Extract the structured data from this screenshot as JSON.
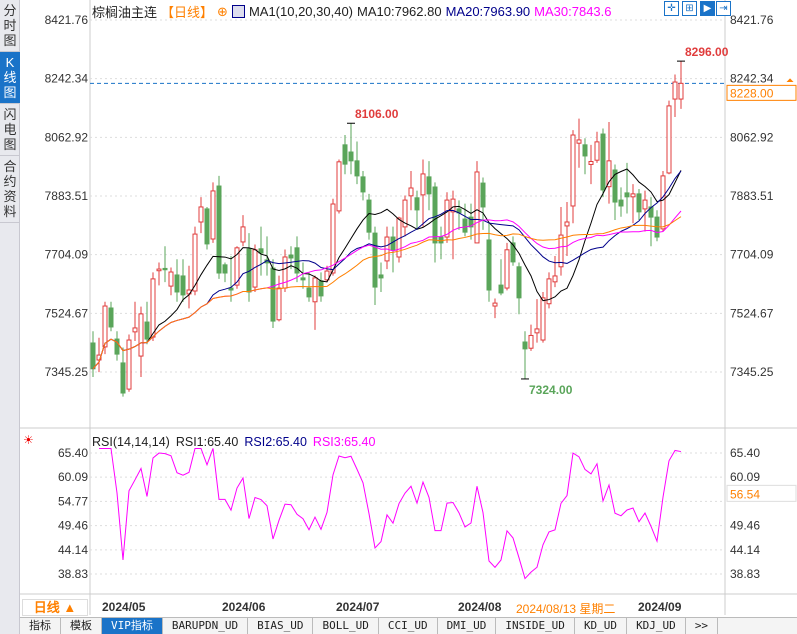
{
  "side_tabs": [
    {
      "label": "分时图"
    },
    {
      "label": "K线图",
      "active": true
    },
    {
      "label": "闪电图"
    },
    {
      "label": "合约资料"
    }
  ],
  "header": {
    "symbol": "棕榈油主连",
    "period": "【日线】",
    "ma_label": "MA1(10,20,30,40)",
    "ma10": "MA10:7962.80",
    "ma20": "MA20:7963.90",
    "ma30": "MA30:7843.6"
  },
  "toolbar": [
    "crosshair-icon",
    "range-icon",
    "play-icon",
    "exit-icon"
  ],
  "colors": {
    "up": "#e03c3c",
    "down": "#5aa55a",
    "ma10": "#000000",
    "ma20": "#00008b",
    "ma30": "#ff00ff",
    "ma40": "#ff8000",
    "accent": "#1a73c8",
    "highlight": "#ff8000"
  },
  "rsi_header": {
    "label": "RSI(14,14,14)",
    "rsi1": "RSI1:65.40",
    "rsi2": "RSI2:65.40",
    "rsi3": "RSI3:65.40"
  },
  "period_button": "日线 ▲",
  "crosshair_date": "2024/08/13 星期二",
  "tabs": [
    "指标",
    "模板",
    "VIP指标",
    "BARUPDN_UD",
    "BIAS_UD",
    "BOLL_UD",
    "CCI_UD",
    "DMI_UD",
    "INSIDE_UD",
    "KD_UD",
    "KDJ_UD",
    ">>"
  ],
  "active_tab": "VIP指标",
  "chart_data": [
    {
      "type": "candlestick",
      "ylim": [
        7345.25,
        8421.76
      ],
      "yticks": [
        "8421.76",
        "8242.34",
        "8062.92",
        "7883.51",
        "7704.09",
        "7524.67",
        "7345.25"
      ],
      "xticks": [
        "2024/05",
        "2024/06",
        "2024/07",
        "2024/08",
        "2024/09"
      ],
      "last_price": "8228.00",
      "high_label": "8296.00",
      "mid_high_label": "8106.00",
      "low_label": "7324.00",
      "ma_periods": [
        10,
        20,
        30,
        40
      ],
      "ohlc": [
        [
          7434,
          7470,
          7330,
          7355
        ],
        [
          7382,
          7450,
          7345,
          7397
        ],
        [
          7422,
          7560,
          7400,
          7547
        ],
        [
          7541,
          7560,
          7470,
          7483
        ],
        [
          7446,
          7470,
          7380,
          7400
        ],
        [
          7373,
          7420,
          7270,
          7281
        ],
        [
          7293,
          7460,
          7285,
          7443
        ],
        [
          7468,
          7560,
          7440,
          7480
        ],
        [
          7394,
          7545,
          7330,
          7523
        ],
        [
          7498,
          7560,
          7430,
          7446
        ],
        [
          7452,
          7650,
          7440,
          7630
        ],
        [
          7655,
          7680,
          7610,
          7660
        ],
        [
          7662,
          7730,
          7620,
          7658
        ],
        [
          7608,
          7665,
          7580,
          7651
        ],
        [
          7642,
          7690,
          7560,
          7590
        ],
        [
          7639,
          7690,
          7560,
          7581
        ],
        [
          7584,
          7670,
          7540,
          7596
        ],
        [
          7593,
          7790,
          7580,
          7767
        ],
        [
          7804,
          7880,
          7770,
          7850
        ],
        [
          7844,
          7850,
          7720,
          7737
        ],
        [
          7752,
          7925,
          7740,
          7899
        ],
        [
          7914,
          7945,
          7630,
          7648
        ],
        [
          7673,
          7680,
          7620,
          7648
        ],
        [
          7602,
          7700,
          7560,
          7596
        ],
        [
          7611,
          7730,
          7600,
          7725
        ],
        [
          7743,
          7825,
          7730,
          7789
        ],
        [
          7722,
          7770,
          7560,
          7590
        ],
        [
          7605,
          7735,
          7590,
          7719
        ],
        [
          7722,
          7790,
          7640,
          7709
        ],
        [
          7688,
          7760,
          7640,
          7679
        ],
        [
          7663,
          7690,
          7480,
          7501
        ],
        [
          7505,
          7640,
          7500,
          7602
        ],
        [
          7602,
          7720,
          7590,
          7697
        ],
        [
          7703,
          7730,
          7660,
          7694
        ],
        [
          7725,
          7760,
          7620,
          7648
        ],
        [
          7633,
          7680,
          7600,
          7627
        ],
        [
          7602,
          7650,
          7560,
          7575
        ],
        [
          7560,
          7640,
          7474,
          7633
        ],
        [
          7624,
          7650,
          7560,
          7578
        ],
        [
          7627,
          7670,
          7620,
          7654
        ],
        [
          7648,
          7875,
          7640,
          7859
        ],
        [
          7838,
          7995,
          7830,
          7988
        ],
        [
          8040,
          8070,
          7950,
          7981
        ],
        [
          8018,
          8106,
          7950,
          7991
        ],
        [
          7991,
          8050,
          7920,
          7945
        ],
        [
          7942,
          7960,
          7870,
          7896
        ],
        [
          7871,
          7890,
          7750,
          7773
        ],
        [
          7770,
          7790,
          7550,
          7605
        ],
        [
          7642,
          7680,
          7590,
          7633
        ],
        [
          7685,
          7790,
          7660,
          7758
        ],
        [
          7758,
          7790,
          7650,
          7719
        ],
        [
          7697,
          7820,
          7680,
          7816
        ],
        [
          7789,
          7885,
          7760,
          7871
        ],
        [
          7884,
          7960,
          7840,
          7908
        ],
        [
          7878,
          7900,
          7780,
          7841
        ],
        [
          7887,
          7995,
          7790,
          7951
        ],
        [
          7942,
          7990,
          7840,
          7890
        ],
        [
          7911,
          7925,
          7680,
          7740
        ],
        [
          7758,
          7790,
          7690,
          7740
        ],
        [
          7758,
          7895,
          7740,
          7871
        ],
        [
          7835,
          7900,
          7690,
          7874
        ],
        [
          7844,
          7870,
          7780,
          7832
        ],
        [
          7813,
          7860,
          7760,
          7773
        ],
        [
          7819,
          7860,
          7750,
          7789
        ],
        [
          7740,
          7990,
          7740,
          7957
        ],
        [
          7923,
          7940,
          7780,
          7850
        ],
        [
          7749,
          7800,
          7560,
          7596
        ],
        [
          7547,
          7570,
          7510,
          7556
        ],
        [
          7611,
          7690,
          7580,
          7587
        ],
        [
          7602,
          7740,
          7595,
          7719
        ],
        [
          7740,
          7760,
          7670,
          7682
        ],
        [
          7667,
          7680,
          7522,
          7572
        ],
        [
          7437,
          7470,
          7324,
          7416
        ],
        [
          7418,
          7490,
          7410,
          7457
        ],
        [
          7465,
          7568,
          7435,
          7477
        ],
        [
          7443,
          7590,
          7435,
          7572
        ],
        [
          7554,
          7650,
          7540,
          7630
        ],
        [
          7621,
          7700,
          7605,
          7639
        ],
        [
          7667,
          7850,
          7640,
          7764
        ],
        [
          7792,
          7865,
          7700,
          7804
        ],
        [
          7853,
          8085,
          7800,
          8070
        ],
        [
          8045,
          8120,
          7970,
          8055
        ],
        [
          8040,
          8060,
          7950,
          8006
        ],
        [
          7980,
          8040,
          7920,
          7989
        ],
        [
          7993,
          8080,
          7985,
          8049
        ],
        [
          8073,
          8090,
          7880,
          7902
        ],
        [
          7912,
          8110,
          7860,
          7991
        ],
        [
          7963,
          7980,
          7810,
          7865
        ],
        [
          7871,
          7910,
          7820,
          7853
        ],
        [
          7893,
          7985,
          7830,
          7881
        ],
        [
          7881,
          7920,
          7800,
          7890
        ],
        [
          7890,
          7905,
          7810,
          7835
        ],
        [
          7844,
          7900,
          7775,
          7871
        ],
        [
          7850,
          7880,
          7730,
          7819
        ],
        [
          7819,
          7840,
          7745,
          7758
        ],
        [
          7783,
          7960,
          7775,
          7945
        ],
        [
          7954,
          8175,
          7950,
          8159
        ],
        [
          8180,
          8255,
          8125,
          8232
        ],
        [
          8180,
          8296,
          8150,
          8228
        ]
      ]
    },
    {
      "type": "line",
      "name": "RSI(14,14,14)",
      "ylim": [
        38.83,
        65.4
      ],
      "yticks": [
        "65.40",
        "60.09",
        "54.77",
        "49.46",
        "44.14",
        "38.83"
      ],
      "cursor_value": "56.54",
      "period": 14
    }
  ]
}
